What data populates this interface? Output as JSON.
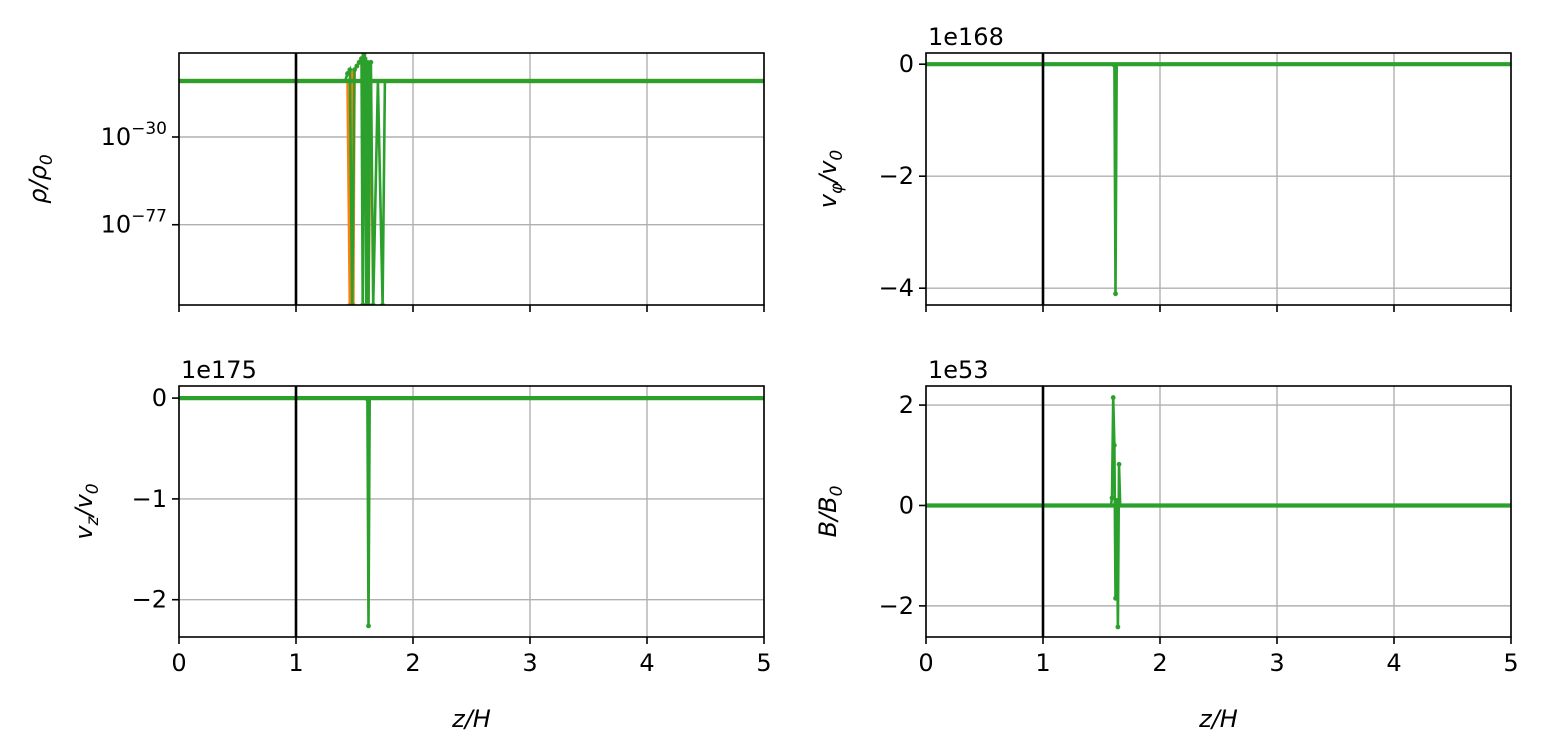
{
  "figure": {
    "background": "#ffffff"
  },
  "chart_data": [
    {
      "id": "rho",
      "type": "line",
      "title": "",
      "xlabel": "",
      "ylabel": "ρ/ρ0",
      "ylabel_main": "ρ/ρ",
      "ylabel_sub": "0",
      "yscale": "log",
      "xlim": [
        0,
        5
      ],
      "ylim_log10": [
        -120,
        15
      ],
      "xticks": [
        0,
        1,
        2,
        3,
        4,
        5
      ],
      "show_xticklabels": false,
      "yticks_log10": [
        -30,
        -77
      ],
      "ytick_labels": [
        {
          "base": "10",
          "exp": "−30"
        },
        {
          "base": "10",
          "exp": "−77"
        }
      ],
      "grid": true,
      "vline_x": 1,
      "series": [
        {
          "color": "#ff7f0e",
          "x": [
            0,
            1.42,
            1.44,
            1.46,
            1.48,
            1.49,
            1.5,
            1.52,
            1.54,
            1.56,
            1.58,
            1.6,
            1.62,
            1.64,
            5
          ],
          "log10_y": [
            0,
            0,
            0,
            -120,
            4,
            -120,
            6,
            8,
            10,
            12,
            14,
            10,
            -120,
            0,
            0
          ]
        },
        {
          "color": "#2ca02c",
          "x": [
            0,
            1.42,
            1.44,
            1.46,
            1.48,
            1.5,
            1.52,
            1.54,
            1.56,
            1.57,
            1.58,
            1.59,
            1.6,
            1.61,
            1.62,
            1.63,
            1.64,
            1.66,
            1.7,
            1.74,
            1.76,
            5
          ],
          "log10_y": [
            0,
            0,
            4,
            6,
            -120,
            6,
            8,
            10,
            12,
            -120,
            14,
            12,
            -120,
            10,
            -120,
            8,
            10,
            -120,
            0,
            -120,
            0,
            0
          ]
        }
      ]
    },
    {
      "id": "vphi",
      "type": "line",
      "title": "",
      "xlabel": "",
      "ylabel": "vφ/v0",
      "ylabel_main": "v",
      "ylabel_sub": "φ",
      "ylabel_tail": "/v",
      "ylabel_tail_sub": "0",
      "multiplier": "1e168",
      "xlim": [
        0,
        5
      ],
      "ylim": [
        -4.3,
        0.2
      ],
      "xticks": [
        0,
        1,
        2,
        3,
        4,
        5
      ],
      "show_xticklabels": false,
      "yticks": [
        0,
        -2,
        -4
      ],
      "ytick_labels": [
        "0",
        "−2",
        "−4"
      ],
      "grid": true,
      "vline_x": 1,
      "series": [
        {
          "color": "#2ca02c",
          "x": [
            0,
            1.6,
            1.61,
            1.62,
            1.63,
            1.64,
            5
          ],
          "y": [
            0,
            0,
            -0.02,
            -4.1,
            0,
            0,
            0
          ]
        }
      ]
    },
    {
      "id": "vz",
      "type": "line",
      "title": "",
      "xlabel": "z/H",
      "ylabel": "vz/v0",
      "ylabel_main": "v",
      "ylabel_sub": "z",
      "ylabel_tail": "/v",
      "ylabel_tail_sub": "0",
      "multiplier": "1e175",
      "xlim": [
        0,
        5
      ],
      "ylim": [
        -2.37,
        0.12
      ],
      "xticks": [
        0,
        1,
        2,
        3,
        4,
        5
      ],
      "xtick_labels": [
        "0",
        "1",
        "2",
        "3",
        "4",
        "5"
      ],
      "show_xticklabels": true,
      "yticks": [
        0,
        -1,
        -2
      ],
      "ytick_labels": [
        "0",
        "−1",
        "−2"
      ],
      "grid": true,
      "vline_x": 1,
      "series": [
        {
          "color": "#2ca02c",
          "x": [
            0,
            1.6,
            1.61,
            1.62,
            1.63,
            1.64,
            5
          ],
          "y": [
            0,
            0,
            -0.01,
            -2.26,
            0,
            0,
            0
          ]
        }
      ]
    },
    {
      "id": "B",
      "type": "line",
      "title": "",
      "xlabel": "z/H",
      "ylabel": "B/B0",
      "ylabel_main": "B/B",
      "ylabel_sub": "0",
      "multiplier": "1e53",
      "xlim": [
        0,
        5
      ],
      "ylim": [
        -2.62,
        2.38
      ],
      "xticks": [
        0,
        1,
        2,
        3,
        4,
        5
      ],
      "xtick_labels": [
        "0",
        "1",
        "2",
        "3",
        "4",
        "5"
      ],
      "show_xticklabels": true,
      "yticks": [
        2,
        0,
        -2
      ],
      "ytick_labels": [
        "2",
        "0",
        "−2"
      ],
      "grid": true,
      "vline_x": 1,
      "series": [
        {
          "color": "#2ca02c",
          "x": [
            0,
            1.58,
            1.59,
            1.6,
            1.61,
            1.62,
            1.63,
            1.64,
            1.65,
            1.66,
            5
          ],
          "y": [
            0,
            0,
            0.15,
            2.15,
            1.2,
            -1.85,
            0.1,
            -2.42,
            0.82,
            0,
            0
          ]
        }
      ]
    }
  ]
}
